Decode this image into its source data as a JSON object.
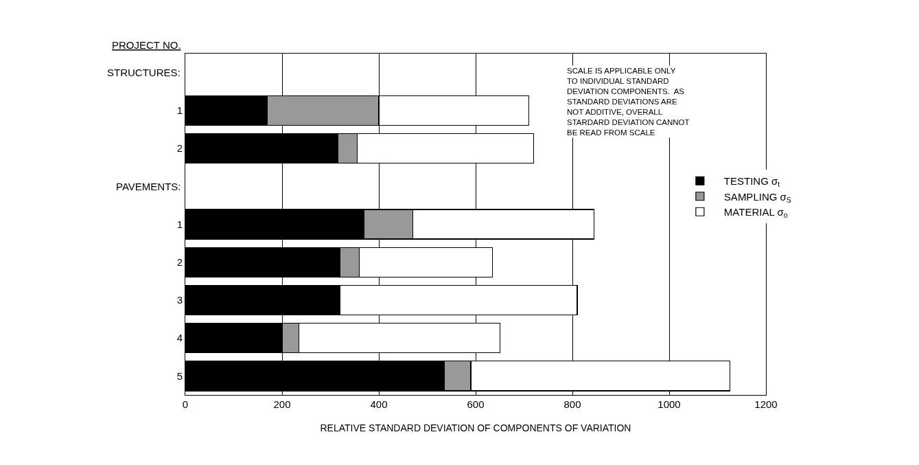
{
  "chart_data": {
    "type": "bar",
    "orientation": "horizontal",
    "stacked": true,
    "categories": [
      null,
      "1",
      "2",
      null,
      "1",
      "2",
      "3",
      "4",
      "5"
    ],
    "ylabel": "PROJECT NO.",
    "xlabel": "RELATIVE STANDARD DEVIATION OF COMPONENTS OF VARIATION",
    "series": [
      {
        "name": "TESTING σ$_{t}$",
        "color": "#000000",
        "values": [
          null,
          170,
          315,
          null,
          370,
          320,
          320,
          200,
          535
        ]
      },
      {
        "name": "SAMPLING σ$_{S}$",
        "color": "#999999",
        "values": [
          null,
          230,
          40,
          null,
          100,
          40,
          0,
          35,
          55
        ]
      },
      {
        "name": "MATERIAL σ$_{o}$",
        "color": "#ffffff",
        "values": [
          null,
          310,
          365,
          null,
          375,
          275,
          490,
          415,
          535
        ]
      }
    ],
    "xlim": [
      0,
      1200
    ],
    "xticks": [
      0,
      200,
      400,
      600,
      800,
      1000,
      1200
    ],
    "grid": "x",
    "legend": "right",
    "annotations": [
      "STRUCTURES:",
      "PAVEMENTS:",
      "SCALE IS APPLICABLE ONLY\nTO INDIVIDUAL STANDARD\nDEVIATION COMPONENTS.  AS\nSTANDARD DEVIATIONS ARE\nNOT ADDITIVE, OVERALL\nSTARDARD DEVIATION CANNOT\nBE READ FROM SCALE"
    ]
  }
}
